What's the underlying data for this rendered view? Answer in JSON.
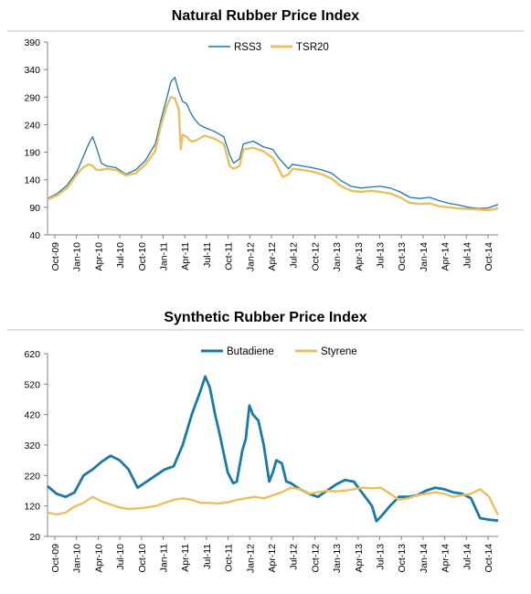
{
  "chart_data": [
    {
      "type": "line",
      "title": "Natural Rubber Price Index",
      "ylim": [
        40,
        390
      ],
      "yticks": [
        40,
        90,
        140,
        190,
        240,
        290,
        340,
        390
      ],
      "xticks": [
        "Oct-09",
        "Jan-10",
        "Apr-10",
        "Jul-10",
        "Oct-10",
        "Jan-11",
        "Apr-11",
        "Jul-11",
        "Oct-11",
        "Jan-12",
        "Apr-12",
        "Jul-12",
        "Oct-12",
        "Jan-13",
        "Apr-13",
        "Jul-13",
        "Oct-13",
        "Jan-14",
        "Apr-14",
        "Jul-14",
        "Oct-14"
      ],
      "grid": false,
      "legend": "top-center",
      "series": [
        {
          "name": "RSS3",
          "color": "#1f77a8",
          "points": [
            [
              0,
              106
            ],
            [
              1,
              115
            ],
            [
              2,
              130
            ],
            [
              3,
              155
            ],
            [
              3.6,
              180
            ],
            [
              4.2,
              205
            ],
            [
              4.6,
              218
            ],
            [
              5,
              198
            ],
            [
              5.5,
              170
            ],
            [
              6,
              165
            ],
            [
              7,
              162
            ],
            [
              8,
              150
            ],
            [
              9,
              158
            ],
            [
              10,
              175
            ],
            [
              11,
              205
            ],
            [
              11.6,
              250
            ],
            [
              12.2,
              290
            ],
            [
              12.6,
              318
            ],
            [
              13,
              326
            ],
            [
              13.4,
              300
            ],
            [
              13.8,
              282
            ],
            [
              14.2,
              278
            ],
            [
              14.6,
              262
            ],
            [
              15,
              250
            ],
            [
              15.5,
              240
            ],
            [
              16,
              235
            ],
            [
              17,
              228
            ],
            [
              18,
              218
            ],
            [
              18.6,
              185
            ],
            [
              19,
              170
            ],
            [
              19.6,
              178
            ],
            [
              20,
              205
            ],
            [
              21,
              210
            ],
            [
              22,
              200
            ],
            [
              23,
              195
            ],
            [
              23.6,
              180
            ],
            [
              24,
              172
            ],
            [
              24.6,
              160
            ],
            [
              25,
              168
            ],
            [
              26,
              165
            ],
            [
              27,
              162
            ],
            [
              28,
              158
            ],
            [
              29,
              152
            ],
            [
              30,
              138
            ],
            [
              31,
              128
            ],
            [
              32,
              125
            ],
            [
              33,
              127
            ],
            [
              34,
              128
            ],
            [
              35,
              125
            ],
            [
              36,
              118
            ],
            [
              37,
              108
            ],
            [
              38,
              106
            ],
            [
              39,
              108
            ],
            [
              40,
              102
            ],
            [
              41,
              97
            ],
            [
              42,
              94
            ],
            [
              43,
              90
            ],
            [
              44,
              88
            ],
            [
              45,
              89
            ],
            [
              46,
              95
            ]
          ]
        },
        {
          "name": "TSR20",
          "color": "#e8c060",
          "points": [
            [
              0,
              104
            ],
            [
              1,
              112
            ],
            [
              2,
              125
            ],
            [
              3,
              150
            ],
            [
              3.6,
              162
            ],
            [
              4.2,
              168
            ],
            [
              4.6,
              165
            ],
            [
              5,
              158
            ],
            [
              5.5,
              158
            ],
            [
              6,
              160
            ],
            [
              7,
              158
            ],
            [
              8,
              148
            ],
            [
              9,
              152
            ],
            [
              10,
              168
            ],
            [
              11,
              192
            ],
            [
              11.6,
              240
            ],
            [
              12.2,
              275
            ],
            [
              12.6,
              290
            ],
            [
              13,
              288
            ],
            [
              13.4,
              268
            ],
            [
              13.6,
              195
            ],
            [
              13.8,
              222
            ],
            [
              14.2,
              218
            ],
            [
              14.6,
              210
            ],
            [
              15,
              210
            ],
            [
              15.5,
              215
            ],
            [
              16,
              220
            ],
            [
              17,
              215
            ],
            [
              18,
              205
            ],
            [
              18.6,
              165
            ],
            [
              19,
              160
            ],
            [
              19.6,
              165
            ],
            [
              20,
              195
            ],
            [
              21,
              198
            ],
            [
              22,
              192
            ],
            [
              23,
              180
            ],
            [
              23.6,
              160
            ],
            [
              24,
              145
            ],
            [
              24.6,
              150
            ],
            [
              25,
              160
            ],
            [
              26,
              158
            ],
            [
              27,
              155
            ],
            [
              28,
              150
            ],
            [
              29,
              142
            ],
            [
              30,
              128
            ],
            [
              31,
              120
            ],
            [
              32,
              118
            ],
            [
              33,
              120
            ],
            [
              34,
              118
            ],
            [
              35,
              115
            ],
            [
              36,
              108
            ],
            [
              37,
              98
            ],
            [
              38,
              96
            ],
            [
              39,
              97
            ],
            [
              40,
              92
            ],
            [
              41,
              90
            ],
            [
              42,
              88
            ],
            [
              43,
              87
            ],
            [
              44,
              86
            ],
            [
              45,
              85
            ],
            [
              46,
              88
            ]
          ]
        }
      ]
    },
    {
      "type": "line",
      "title": "Synthetic Rubber Price Index",
      "ylim": [
        20,
        620
      ],
      "yticks": [
        20,
        120,
        220,
        320,
        420,
        520,
        620
      ],
      "xticks": [
        "Oct-09",
        "Jan-10",
        "Apr-10",
        "Jul-10",
        "Oct-10",
        "Jan-11",
        "Apr-11",
        "Jul-11",
        "Oct-11",
        "Jan-12",
        "Apr-12",
        "Jul-12",
        "Oct-12",
        "Jan-13",
        "Apr-13",
        "Jul-13",
        "Oct-13",
        "Jan-14",
        "Apr-14",
        "Jul-14",
        "Oct-14"
      ],
      "grid": false,
      "legend": "top-center",
      "series": [
        {
          "name": "Butadiene",
          "color": "#1a7aa5",
          "points": [
            [
              0,
              185
            ],
            [
              1,
              160
            ],
            [
              2,
              150
            ],
            [
              3,
              165
            ],
            [
              4,
              220
            ],
            [
              5,
              240
            ],
            [
              6,
              265
            ],
            [
              7,
              285
            ],
            [
              8,
              270
            ],
            [
              9,
              240
            ],
            [
              10,
              180
            ],
            [
              11,
              200
            ],
            [
              12,
              220
            ],
            [
              13,
              240
            ],
            [
              14,
              250
            ],
            [
              15,
              320
            ],
            [
              16,
              420
            ],
            [
              17,
              500
            ],
            [
              17.5,
              545
            ],
            [
              18,
              510
            ],
            [
              18.6,
              420
            ],
            [
              19,
              370
            ],
            [
              20,
              230
            ],
            [
              20.6,
              195
            ],
            [
              21,
              200
            ],
            [
              21.6,
              300
            ],
            [
              22,
              340
            ],
            [
              22.4,
              450
            ],
            [
              22.8,
              420
            ],
            [
              23.4,
              400
            ],
            [
              24,
              320
            ],
            [
              24.6,
              200
            ],
            [
              25,
              230
            ],
            [
              25.4,
              270
            ],
            [
              26,
              260
            ],
            [
              26.5,
              200
            ],
            [
              27,
              195
            ],
            [
              28,
              175
            ],
            [
              29,
              160
            ],
            [
              30,
              150
            ],
            [
              31,
              170
            ],
            [
              32,
              190
            ],
            [
              33,
              205
            ],
            [
              34,
              200
            ],
            [
              34.6,
              175
            ],
            [
              35,
              160
            ],
            [
              36,
              120
            ],
            [
              36.5,
              70
            ],
            [
              37,
              85
            ],
            [
              38,
              120
            ],
            [
              39,
              150
            ],
            [
              40,
              150
            ],
            [
              41,
              155
            ],
            [
              42,
              170
            ],
            [
              43,
              180
            ],
            [
              44,
              175
            ],
            [
              45,
              165
            ],
            [
              46,
              160
            ],
            [
              47,
              145
            ],
            [
              48,
              80
            ],
            [
              49,
              75
            ],
            [
              50,
              72
            ]
          ]
        },
        {
          "name": "Styrene",
          "color": "#e8c060",
          "points": [
            [
              0,
              98
            ],
            [
              1,
              92
            ],
            [
              2,
              98
            ],
            [
              3,
              118
            ],
            [
              4,
              130
            ],
            [
              5,
              150
            ],
            [
              6,
              135
            ],
            [
              7,
              125
            ],
            [
              8,
              115
            ],
            [
              9,
              110
            ],
            [
              10,
              112
            ],
            [
              11,
              115
            ],
            [
              12,
              120
            ],
            [
              13,
              130
            ],
            [
              14,
              140
            ],
            [
              15,
              145
            ],
            [
              16,
              140
            ],
            [
              17,
              130
            ],
            [
              18,
              130
            ],
            [
              19,
              128
            ],
            [
              20,
              132
            ],
            [
              21,
              140
            ],
            [
              22,
              145
            ],
            [
              23,
              150
            ],
            [
              24,
              145
            ],
            [
              25,
              155
            ],
            [
              26,
              165
            ],
            [
              27,
              180
            ],
            [
              28,
              175
            ],
            [
              29,
              160
            ],
            [
              30,
              165
            ],
            [
              31,
              170
            ],
            [
              32,
              168
            ],
            [
              33,
              170
            ],
            [
              34,
              175
            ],
            [
              35,
              180
            ],
            [
              36,
              178
            ],
            [
              37,
              180
            ],
            [
              38,
              160
            ],
            [
              39,
              140
            ],
            [
              40,
              145
            ],
            [
              41,
              155
            ],
            [
              42,
              160
            ],
            [
              43,
              165
            ],
            [
              44,
              160
            ],
            [
              45,
              150
            ],
            [
              46,
              155
            ],
            [
              47,
              160
            ],
            [
              48,
              175
            ],
            [
              49,
              150
            ],
            [
              50,
              90
            ]
          ]
        }
      ]
    }
  ]
}
